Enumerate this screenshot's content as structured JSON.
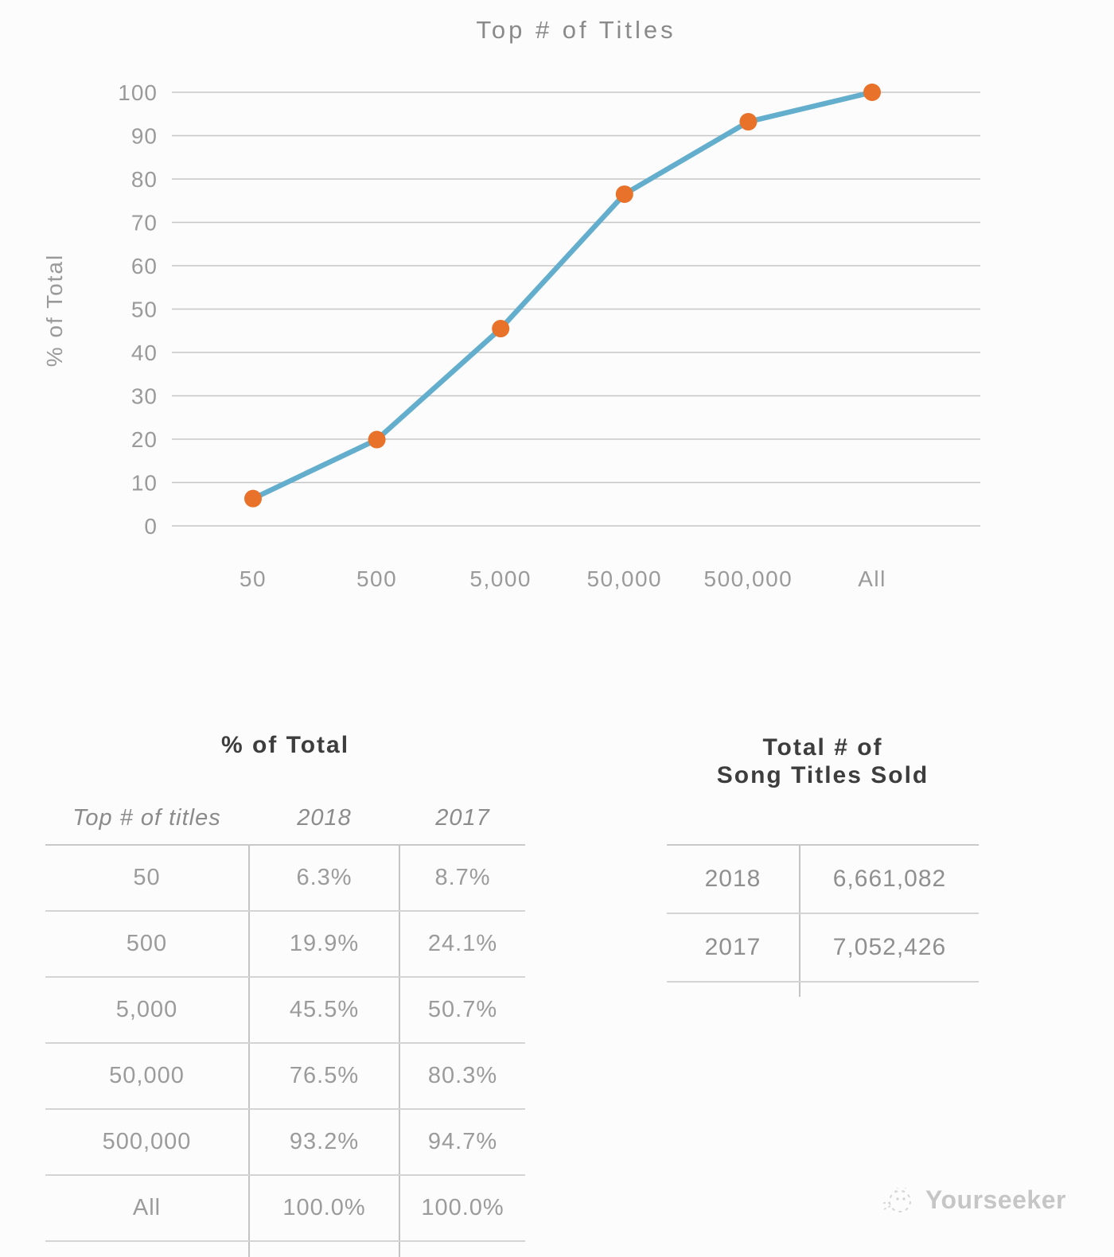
{
  "chart_data": {
    "type": "line",
    "title": "Top # of Titles",
    "ylabel": "% of Total",
    "xlabel": "",
    "categories": [
      "50",
      "500",
      "5,000",
      "50,000",
      "500,000",
      "All"
    ],
    "series": [
      {
        "name": "2018",
        "values": [
          6.3,
          19.9,
          45.5,
          76.5,
          93.2,
          100.0
        ]
      }
    ],
    "ylim": [
      0,
      100
    ],
    "ytick_step": 10,
    "grid": true,
    "legend_position": "none",
    "line_color": "#64aecd",
    "marker_color": "#e8722a",
    "gridline_color": "#c6c6c6",
    "axis_text_color": "#9a9a9a",
    "title_color": "#8a8a8a"
  },
  "percent_table": {
    "title": "% of Total",
    "columns": [
      "Top # of titles",
      "2018",
      "2017"
    ],
    "rows": [
      [
        "50",
        "6.3%",
        "8.7%"
      ],
      [
        "500",
        "19.9%",
        "24.1%"
      ],
      [
        "5,000",
        "45.5%",
        "50.7%"
      ],
      [
        "50,000",
        "76.5%",
        "80.3%"
      ],
      [
        "500,000",
        "93.2%",
        "94.7%"
      ],
      [
        "All",
        "100.0%",
        "100.0%"
      ]
    ]
  },
  "totals_table": {
    "title_line1": "Total # of",
    "title_line2": "Song Titles Sold",
    "rows": [
      [
        "2018",
        "6,661,082"
      ],
      [
        "2017",
        "7,052,426"
      ]
    ]
  },
  "watermark": {
    "brand": "Yourseeker"
  }
}
